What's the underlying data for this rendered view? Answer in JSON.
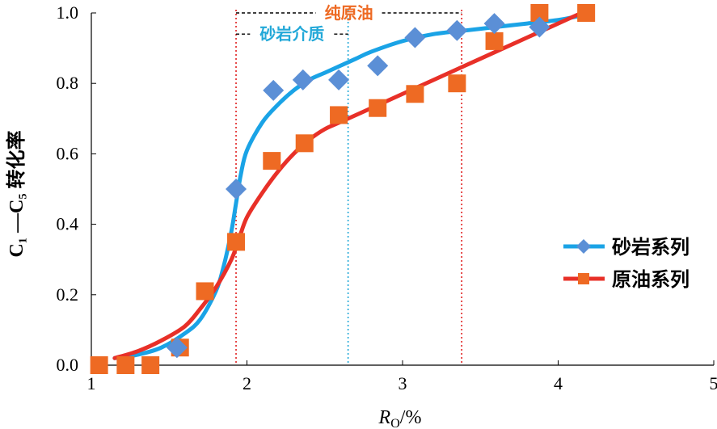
{
  "chart_data": {
    "type": "scatter",
    "xlabel": "R",
    "xlabel_sub": "O",
    "xlabel_unit": "/%",
    "ylabel": "C₁ —C₅ 转化率",
    "xlim": [
      1,
      5
    ],
    "ylim": [
      0,
      1
    ],
    "xticks": [
      "1",
      "2",
      "3",
      "4",
      "5"
    ],
    "yticks": [
      "0.0",
      "0.2",
      "0.4",
      "0.6",
      "0.8",
      "1.0"
    ],
    "grid": false,
    "legend_position": "right",
    "series": [
      {
        "name": "砂岩系列",
        "marker": "diamond",
        "color": "#5b8fd6",
        "line_color": "#1aa3e6",
        "x": [
          1.55,
          1.93,
          2.17,
          2.36,
          2.59,
          2.84,
          3.08,
          3.35,
          3.59,
          3.88
        ],
        "y": [
          0.05,
          0.5,
          0.78,
          0.81,
          0.81,
          0.85,
          0.93,
          0.95,
          0.97,
          0.96
        ],
        "fit_x": [
          1.15,
          1.3,
          1.45,
          1.6,
          1.7,
          1.8,
          1.85,
          1.9,
          1.93,
          1.96,
          2.0,
          2.1,
          2.2,
          2.3,
          2.4,
          2.5,
          2.6,
          2.7,
          2.8,
          3.0,
          3.2,
          3.4,
          3.6,
          3.8,
          4.0,
          4.12
        ],
        "fit_y": [
          0.02,
          0.03,
          0.05,
          0.09,
          0.13,
          0.21,
          0.28,
          0.38,
          0.46,
          0.54,
          0.61,
          0.69,
          0.74,
          0.78,
          0.81,
          0.83,
          0.85,
          0.87,
          0.89,
          0.92,
          0.94,
          0.95,
          0.96,
          0.97,
          0.98,
          0.99
        ]
      },
      {
        "name": "原油系列",
        "marker": "square",
        "color": "#ee6a23",
        "line_color": "#e83028",
        "x": [
          1.05,
          1.22,
          1.38,
          1.57,
          1.73,
          1.93,
          2.16,
          2.37,
          2.59,
          2.84,
          3.08,
          3.35,
          3.59,
          3.88,
          4.18
        ],
        "y": [
          0.0,
          0.0,
          0.0,
          0.05,
          0.21,
          0.35,
          0.58,
          0.63,
          0.71,
          0.73,
          0.77,
          0.8,
          0.92,
          1.0,
          1.0
        ],
        "fit_x": [
          1.15,
          1.3,
          1.45,
          1.6,
          1.7,
          1.8,
          1.9,
          1.95,
          2.0,
          2.1,
          2.2,
          2.3,
          2.4,
          2.5,
          2.6,
          2.8,
          3.0,
          3.2,
          3.4,
          3.6,
          3.8,
          4.0,
          4.15
        ],
        "fit_y": [
          0.02,
          0.04,
          0.07,
          0.11,
          0.16,
          0.22,
          0.3,
          0.36,
          0.42,
          0.49,
          0.55,
          0.6,
          0.64,
          0.67,
          0.69,
          0.73,
          0.77,
          0.81,
          0.85,
          0.89,
          0.93,
          0.97,
          1.0
        ]
      }
    ],
    "annotations": {
      "vlines": [
        {
          "x": 1.93,
          "color": "#e02020"
        },
        {
          "x": 2.65,
          "color": "#22a8d8"
        },
        {
          "x": 3.38,
          "color": "#e02020"
        }
      ],
      "ranges": [
        {
          "label": "纯原油",
          "x0": 1.93,
          "x1": 3.38,
          "y": 1.0,
          "color": "#ee6a23"
        },
        {
          "label": "砂岩介质",
          "x0": 1.93,
          "x1": 2.65,
          "y": 0.94,
          "color": "#22a8d8"
        }
      ]
    }
  }
}
